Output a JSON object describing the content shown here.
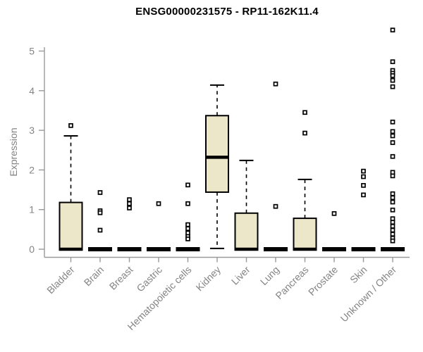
{
  "chart_data": {
    "type": "boxplot",
    "title": "ENSG00000231575 - RP11-162K11.4",
    "xlabel": "",
    "ylabel": "Expression",
    "ylim": [
      0,
      5.6
    ],
    "yticks": [
      0,
      1,
      2,
      3,
      4,
      5
    ],
    "grid": false,
    "legend": false,
    "categories": [
      "Bladder",
      "Brain",
      "Breast",
      "Gastric",
      "Hematopoietic cells",
      "Kidney",
      "Liver",
      "Lung",
      "Pancreas",
      "Prostate",
      "Skin",
      "Unknown / Other"
    ],
    "boxes": [
      {
        "category": "Bladder",
        "whisker_low": 0,
        "q1": 0,
        "median": 0,
        "q3": 1.18,
        "whisker_high": 2.86,
        "outliers": [
          3.12
        ]
      },
      {
        "category": "Brain",
        "whisker_low": 0,
        "q1": 0,
        "median": 0,
        "q3": 0,
        "whisker_high": 0,
        "outliers": [
          1.43,
          0.97,
          0.92,
          0.48
        ]
      },
      {
        "category": "Breast",
        "whisker_low": 0,
        "q1": 0,
        "median": 0,
        "q3": 0,
        "whisker_high": 0,
        "outliers": [
          1.25,
          1.15,
          1.04
        ]
      },
      {
        "category": "Gastric",
        "whisker_low": 0,
        "q1": 0,
        "median": 0,
        "q3": 0,
        "whisker_high": 0,
        "outliers": [
          1.15
        ]
      },
      {
        "category": "Hematopoietic cells",
        "whisker_low": 0,
        "q1": 0,
        "median": 0,
        "q3": 0,
        "whisker_high": 0,
        "outliers": [
          1.62,
          1.15,
          0.62,
          0.52,
          0.41,
          0.32,
          0.26
        ]
      },
      {
        "category": "Kidney",
        "whisker_low": 0.02,
        "q1": 1.44,
        "median": 2.32,
        "q3": 3.37,
        "whisker_high": 4.14,
        "outliers": []
      },
      {
        "category": "Liver",
        "whisker_low": 0,
        "q1": 0,
        "median": 0,
        "q3": 0.91,
        "whisker_high": 2.24,
        "outliers": []
      },
      {
        "category": "Lung",
        "whisker_low": 0,
        "q1": 0,
        "median": 0,
        "q3": 0,
        "whisker_high": 0,
        "outliers": [
          4.17,
          1.08
        ]
      },
      {
        "category": "Pancreas",
        "whisker_low": 0,
        "q1": 0,
        "median": 0,
        "q3": 0.78,
        "whisker_high": 1.76,
        "outliers": [
          3.45,
          2.93
        ]
      },
      {
        "category": "Prostate",
        "whisker_low": 0,
        "q1": 0,
        "median": 0,
        "q3": 0,
        "whisker_high": 0,
        "outliers": [
          0.9
        ]
      },
      {
        "category": "Skin",
        "whisker_low": 0,
        "q1": 0,
        "median": 0,
        "q3": 0,
        "whisker_high": 0,
        "outliers": [
          1.97,
          1.83,
          1.61,
          1.37
        ]
      },
      {
        "category": "Unknown / Other",
        "whisker_low": 0,
        "q1": 0,
        "median": 0,
        "q3": 0,
        "whisker_high": 0,
        "outliers": [
          5.53,
          4.73,
          4.51,
          4.44,
          4.38,
          4.26,
          4.1,
          3.21,
          2.97,
          2.86,
          2.69,
          2.34,
          1.94,
          1.85,
          1.4,
          1.3,
          1.19,
          0.99,
          0.77,
          0.68,
          0.58,
          0.48,
          0.38,
          0.28,
          0.21
        ]
      }
    ],
    "colors": {
      "box_fill": "#EDE7CA",
      "box_border": "#000000",
      "median": "#000000",
      "whisker": "#000000",
      "outlier_stroke": "#000000",
      "outlier_fill": "#FFFFFF",
      "axis": "#9A9A9A",
      "tick_label": "#848484",
      "title": "#000000",
      "background": "#FFFFFF"
    }
  }
}
